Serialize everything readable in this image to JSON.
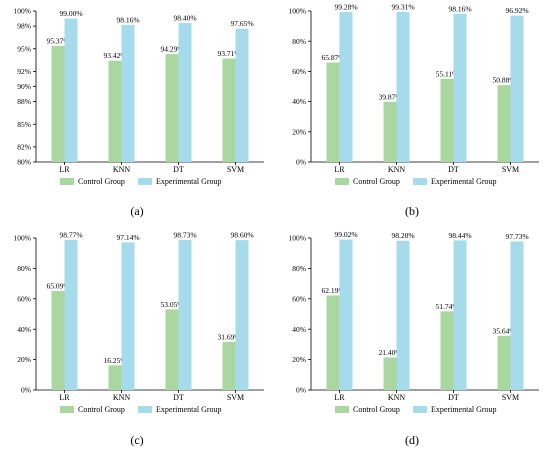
{
  "figure": {
    "legend": [
      "Control Group",
      "Experimental Group"
    ],
    "colors": {
      "control": "#a9d79f",
      "experimental": "#a5dbeb"
    }
  },
  "chart_data": [
    {
      "type": "bar",
      "panel_label": "(a)",
      "categories": [
        "LR",
        "KNN",
        "DT",
        "SVM"
      ],
      "series": [
        {
          "name": "Control Group",
          "values": [
            95.37,
            93.42,
            94.29,
            93.71
          ],
          "labels": [
            "95.37%",
            "93.42%",
            "94.29%",
            "93.71%"
          ]
        },
        {
          "name": "Experimental Group",
          "values": [
            99.0,
            98.16,
            98.4,
            97.65
          ],
          "labels": [
            "99.00%",
            "98.16%",
            "98.40%",
            "97.65%"
          ]
        }
      ],
      "ylim": [
        80,
        100
      ],
      "yticks": [
        80,
        82,
        85,
        88,
        90,
        92,
        95,
        98,
        100
      ],
      "ytick_labels": [
        "80%",
        "82%",
        "85%",
        "88%",
        "90%",
        "92%",
        "95%",
        "98%",
        "100%"
      ],
      "legend_position": "bottom"
    },
    {
      "type": "bar",
      "panel_label": "(b)",
      "categories": [
        "LR",
        "KNN",
        "DT",
        "SVM"
      ],
      "series": [
        {
          "name": "Control Group",
          "values": [
            65.87,
            39.87,
            55.11,
            50.88
          ],
          "labels": [
            "65.87%",
            "39.87%",
            "55.11%",
            "50.88%"
          ]
        },
        {
          "name": "Experimental Group",
          "values": [
            99.28,
            99.31,
            98.16,
            96.92
          ],
          "labels": [
            "99.28%",
            "99.31%",
            "98.16%",
            "96.92%"
          ]
        }
      ],
      "ylim": [
        0,
        100
      ],
      "yticks": [
        0,
        20,
        40,
        60,
        80,
        100
      ],
      "ytick_labels": [
        "0%",
        "20%",
        "40%",
        "60%",
        "80%",
        "100%"
      ],
      "legend_position": "bottom"
    },
    {
      "type": "bar",
      "panel_label": "(c)",
      "categories": [
        "LR",
        "KNN",
        "DT",
        "SVM"
      ],
      "series": [
        {
          "name": "Control Group",
          "values": [
            65.09,
            16.25,
            53.05,
            31.69
          ],
          "labels": [
            "65.09%",
            "16.25%",
            "53.05%",
            "31.69%"
          ]
        },
        {
          "name": "Experimental Group",
          "values": [
            98.77,
            97.14,
            98.73,
            98.6
          ],
          "labels": [
            "98.77%",
            "97.14%",
            "98.73%",
            "98.60%"
          ]
        }
      ],
      "ylim": [
        0,
        100
      ],
      "yticks": [
        0,
        20,
        40,
        60,
        80,
        100
      ],
      "ytick_labels": [
        "0%",
        "20%",
        "40%",
        "60%",
        "80%",
        "100%"
      ],
      "legend_position": "bottom"
    },
    {
      "type": "bar",
      "panel_label": "(d)",
      "categories": [
        "LR",
        "KNN",
        "DT",
        "SVM"
      ],
      "series": [
        {
          "name": "Control Group",
          "values": [
            62.19,
            21.4,
            51.74,
            35.64
          ],
          "labels": [
            "62.19%",
            "21.40%",
            "51.74%",
            "35.64%"
          ]
        },
        {
          "name": "Experimental Group",
          "values": [
            99.02,
            98.2,
            98.44,
            97.73
          ],
          "labels": [
            "99.02%",
            "98.20%",
            "98.44%",
            "97.73%"
          ]
        }
      ],
      "ylim": [
        0,
        100
      ],
      "yticks": [
        0,
        20,
        40,
        60,
        80,
        100
      ],
      "ytick_labels": [
        "0%",
        "20%",
        "40%",
        "60%",
        "80%",
        "100%"
      ],
      "legend_position": "bottom"
    }
  ]
}
